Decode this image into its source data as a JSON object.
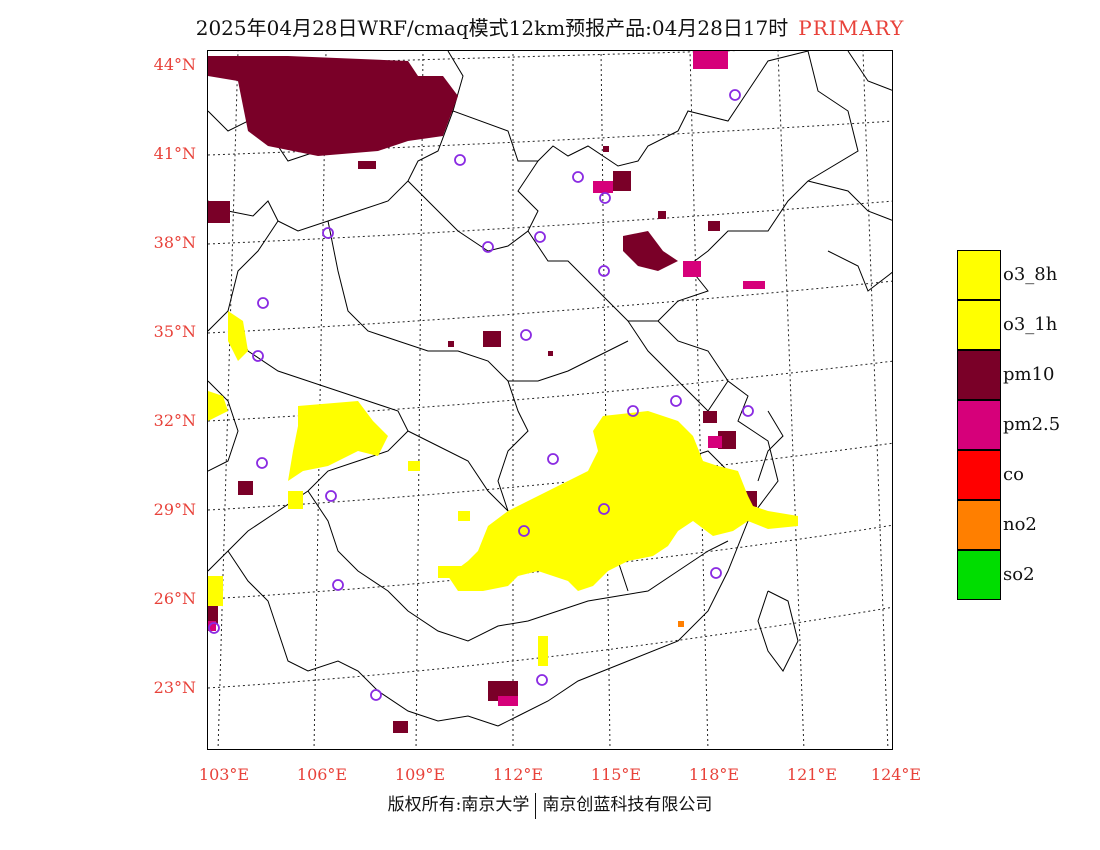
{
  "header": {
    "title": "2025年04月28日WRF/cmaq模式12km预报产品:04月28日17时",
    "tag": "PRIMARY"
  },
  "map": {
    "lat_labels": [
      "44°N",
      "41°N",
      "38°N",
      "35°N",
      "32°N",
      "29°N",
      "26°N",
      "23°N"
    ],
    "lon_labels": [
      "103°E",
      "106°E",
      "109°E",
      "112°E",
      "115°E",
      "118°E",
      "121°E",
      "124°E"
    ]
  },
  "legend": {
    "items": [
      {
        "label": "o3_8h",
        "color": "#ffff00"
      },
      {
        "label": "o3_1h",
        "color": "#ffff00"
      },
      {
        "label": "pm10",
        "color": "#7a0028"
      },
      {
        "label": "pm2.5",
        "color": "#d6007a"
      },
      {
        "label": "co",
        "color": "#ff0000"
      },
      {
        "label": "no2",
        "color": "#ff7f00"
      },
      {
        "label": "so2",
        "color": "#00dd00"
      }
    ]
  },
  "footer": {
    "copyright": "版权所有:南京大学",
    "company": "南京创蓝科技有限公司"
  },
  "colors": {
    "label_red": "#e8423a",
    "o3": "#ffff00",
    "pm10": "#7a0028",
    "pm25": "#d6007a",
    "station": "#8a2be2"
  }
}
